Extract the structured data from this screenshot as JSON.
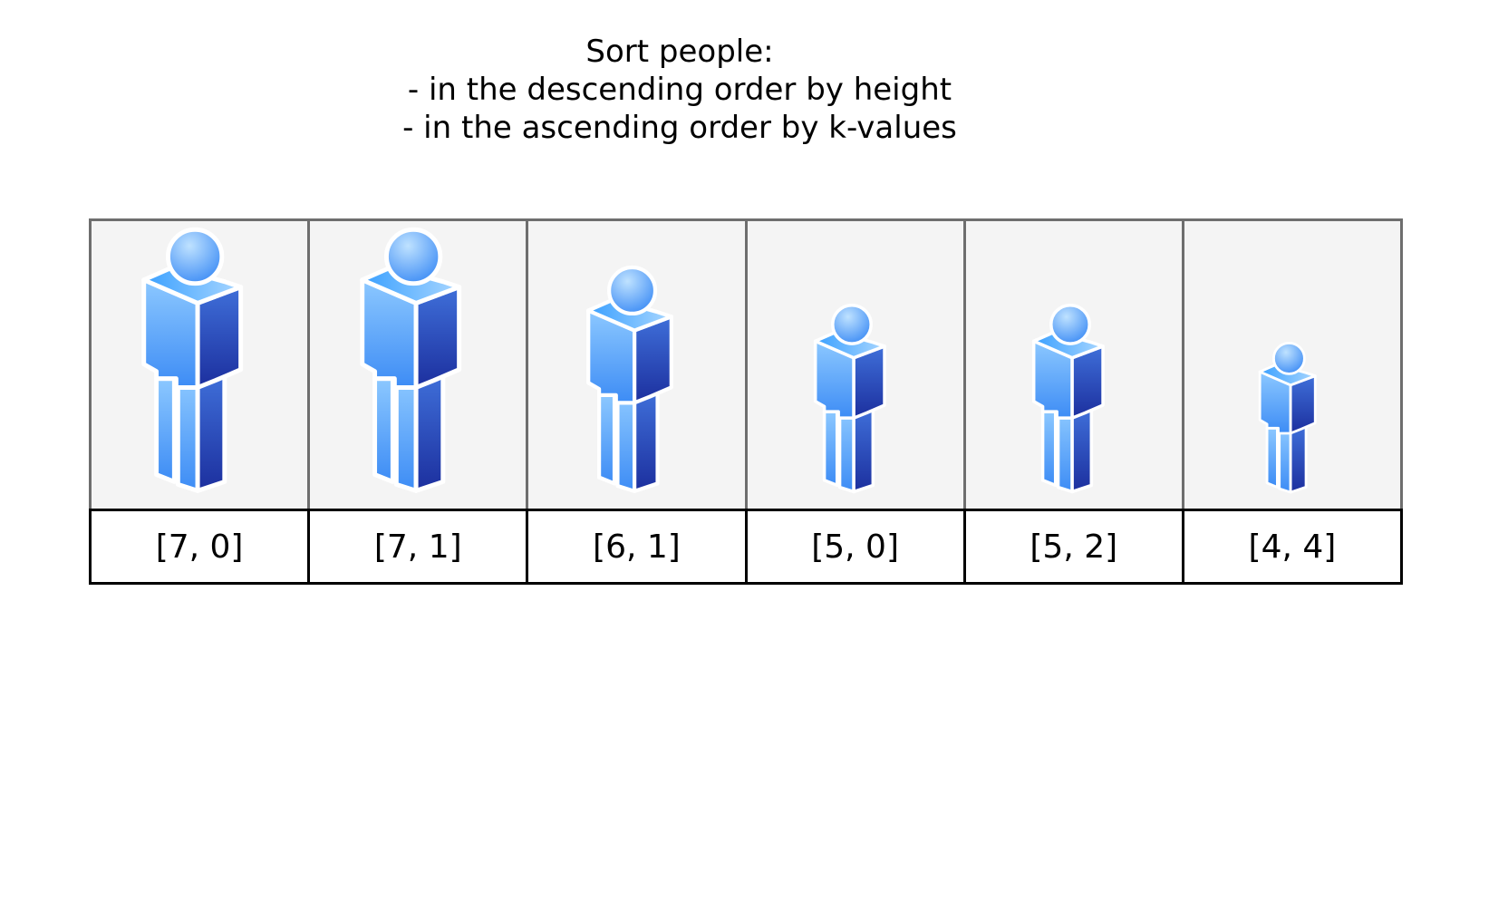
{
  "title": {
    "line1": "Sort people:",
    "line2": "- in the descending order by height",
    "line3": "- in the ascending order by k-values"
  },
  "people": [
    {
      "label": "[7, 0]",
      "height": 7,
      "k": 0
    },
    {
      "label": "[7, 1]",
      "height": 7,
      "k": 1
    },
    {
      "label": "[6, 1]",
      "height": 6,
      "k": 1
    },
    {
      "label": "[5, 0]",
      "height": 5,
      "k": 0
    },
    {
      "label": "[5, 2]",
      "height": 5,
      "k": 2
    },
    {
      "label": "[4, 4]",
      "height": 4,
      "k": 4
    }
  ],
  "colors": {
    "figure_light": "#8cc8ff",
    "figure_mid": "#3d8cf5",
    "figure_dark": "#1c2f9e",
    "cell_background": "#f4f4f4",
    "figure_border": "#6e6e6e",
    "label_border": "#000000"
  },
  "icon": "person-icon"
}
